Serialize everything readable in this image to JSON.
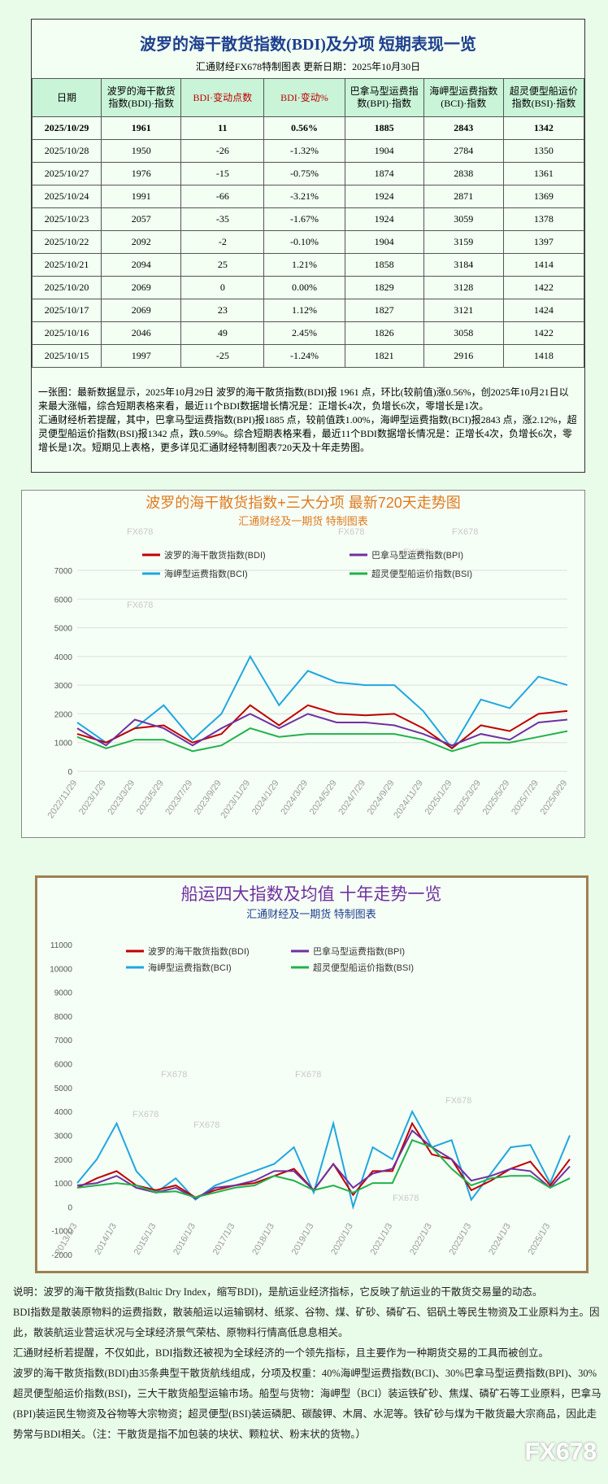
{
  "header": {
    "title": "波罗的海干散货指数(BDI)及分项  短期表现一览",
    "subtitle": "汇通财经FX678特制图表     更新日期：2025年10月30日"
  },
  "table": {
    "columns": [
      "日期",
      "波罗的海干散货指数(BDI)·指数",
      "BDI·变动点数",
      "BDI·变动%",
      "巴拿马型运费指数(BPI)·指数",
      "海岬型运费指数(BCI)·指数",
      "超灵便型船运价指数(BSI)·指数"
    ],
    "rows": [
      [
        "2025/10/29",
        "1961",
        "11",
        "0.56%",
        "1885",
        "2843",
        "1342"
      ],
      [
        "2025/10/28",
        "1950",
        "-26",
        "-1.32%",
        "1904",
        "2784",
        "1350"
      ],
      [
        "2025/10/27",
        "1976",
        "-15",
        "-0.75%",
        "1874",
        "2838",
        "1361"
      ],
      [
        "2025/10/24",
        "1991",
        "-66",
        "-3.21%",
        "1924",
        "2871",
        "1369"
      ],
      [
        "2025/10/23",
        "2057",
        "-35",
        "-1.67%",
        "1924",
        "3059",
        "1378"
      ],
      [
        "2025/10/22",
        "2092",
        "-2",
        "-0.10%",
        "1904",
        "3159",
        "1397"
      ],
      [
        "2025/10/21",
        "2094",
        "25",
        "1.21%",
        "1858",
        "3184",
        "1414"
      ],
      [
        "2025/10/20",
        "2069",
        "0",
        "0.00%",
        "1829",
        "3128",
        "1422"
      ],
      [
        "2025/10/17",
        "2069",
        "23",
        "1.12%",
        "1827",
        "3121",
        "1424"
      ],
      [
        "2025/10/16",
        "2046",
        "49",
        "2.45%",
        "1826",
        "3058",
        "1422"
      ],
      [
        "2025/10/15",
        "1997",
        "-25",
        "-1.24%",
        "1821",
        "2916",
        "1418"
      ]
    ]
  },
  "note": [
    "一张图：最新数据显示，2025年10月29日 波罗的海干散货指数(BDI)报 1961 点，环比(较前值)涨0.56%，创2025年10月21日以来最大涨幅，综合短期表格来看，最近11个BDI数据增长情况是：正增长4次，负增长6次，零增长是1次。",
    "汇通财经析若提醒，其中，巴拿马型运费指数(BPI)报1885 点，较前值跌1.00%，海岬型运费指数(BCI)报2843 点，涨2.12%，超灵便型船运价指数(BSI)报1342 点，跌0.59%。综合短期表格来看，最近11个BDI数据增长情况是：正增长4次，负增长6次，零增长是1次。短期见上表格，更多详见汇通财经特制图表720天及十年走势图。"
  ],
  "chart_data": [
    {
      "type": "line",
      "title": "波罗的海干散货指数+三大分项  最新720天走势图",
      "subtitle": "汇通财经及一期货  特制图表",
      "watermark": "FX678",
      "grid": true,
      "categories": [
        "2022/11/29",
        "2023/1/29",
        "2023/3/29",
        "2023/5/29",
        "2023/7/29",
        "2023/9/29",
        "2023/11/29",
        "2024/1/29",
        "2024/3/29",
        "2024/5/29",
        "2024/7/29",
        "2024/9/29",
        "2024/11/29",
        "2025/1/29",
        "2025/3/29",
        "2025/5/29",
        "2025/7/29",
        "2025/9/29"
      ],
      "ylim": [
        0,
        7000
      ],
      "yticks": [
        0,
        1000,
        2000,
        3000,
        4000,
        5000,
        6000,
        7000
      ],
      "series": [
        {
          "name": "海岬型运费指数(BCI)",
          "color": "#1fa7e0",
          "values": [
            1700,
            1000,
            1500,
            2300,
            1100,
            2000,
            4000,
            2300,
            3500,
            3100,
            3000,
            3000,
            2100,
            800,
            2500,
            2200,
            3300,
            3000
          ]
        },
        {
          "name": "波罗的海干散货指数(BDI)",
          "color": "#c00000",
          "values": [
            1300,
            1000,
            1500,
            1600,
            1000,
            1300,
            2300,
            1600,
            2300,
            2000,
            1950,
            2000,
            1500,
            800,
            1600,
            1400,
            2000,
            2100
          ]
        },
        {
          "name": "巴拿马型运费指数(BPI)",
          "color": "#7030a0",
          "values": [
            1500,
            900,
            1800,
            1500,
            900,
            1500,
            2000,
            1500,
            2000,
            1700,
            1700,
            1600,
            1300,
            900,
            1300,
            1100,
            1700,
            1800
          ]
        },
        {
          "name": "超灵便型船运价指数(BSI)",
          "color": "#22b14c",
          "values": [
            1200,
            800,
            1100,
            1100,
            700,
            900,
            1500,
            1200,
            1300,
            1300,
            1300,
            1300,
            1100,
            700,
            1000,
            1000,
            1200,
            1400
          ]
        }
      ]
    },
    {
      "type": "line",
      "title": "船运四大指数及均值 十年走势一览",
      "subtitle": "汇通财经及一期货 特制图表",
      "watermark": "FX678",
      "grid": false,
      "categories": [
        "2013/1/3",
        null,
        "2014/1/3",
        null,
        "2015/1/3",
        null,
        "2016/1/3",
        null,
        "2017/1/3",
        null,
        "2018/1/3",
        null,
        "2019/1/3",
        null,
        "2020/1/3",
        null,
        "2021/1/3",
        null,
        "2022/1/3",
        null,
        "2023/1/3",
        null,
        "2024/1/3",
        null,
        "2025/1/3",
        null
      ],
      "ylim": [
        -2000,
        11000
      ],
      "yticks": [
        -2000,
        -1000,
        0,
        1000,
        2000,
        3000,
        4000,
        5000,
        6000,
        7000,
        8000,
        9000,
        10000,
        11000
      ],
      "series": [
        {
          "name": "海岬型运费指数(BCI)",
          "color": "#1fa7e0",
          "values": [
            1000,
            2000,
            3500,
            1500,
            600,
            1200,
            300,
            900,
            1200,
            1500,
            1800,
            2500,
            600,
            3500,
            0,
            2500,
            2000,
            4000,
            2500,
            2800,
            300,
            1400,
            2500,
            2600,
            1000,
            3000
          ]
        },
        {
          "name": "波罗的海干散货指数(BDI)",
          "color": "#c00000",
          "values": [
            800,
            1200,
            1500,
            900,
            700,
            900,
            400,
            700,
            900,
            1000,
            1300,
            1600,
            700,
            1800,
            500,
            1500,
            1500,
            3500,
            2200,
            2000,
            700,
            1100,
            1600,
            1900,
            900,
            2000
          ]
        },
        {
          "name": "巴拿马型运费指数(BPI)",
          "color": "#7030a0",
          "values": [
            900,
            1000,
            1300,
            800,
            600,
            800,
            350,
            800,
            900,
            1100,
            1500,
            1500,
            700,
            1800,
            800,
            1400,
            1600,
            3200,
            2500,
            2000,
            1100,
            1300,
            1600,
            1500,
            800,
            1700
          ]
        },
        {
          "name": "超灵便型船运价指数(BSI)",
          "color": "#22b14c",
          "values": [
            800,
            900,
            1000,
            900,
            600,
            650,
            400,
            600,
            800,
            900,
            1300,
            1100,
            700,
            900,
            600,
            1000,
            1000,
            2800,
            2500,
            1600,
            900,
            1200,
            1300,
            1300,
            800,
            1200
          ]
        }
      ]
    }
  ],
  "footer": [
    "说明：波罗的海干散货指数(Baltic Dry Index，缩写BDI)，是航运业经济指标，它反映了航运业的干散货交易量的动态。",
    "BDI指数是散装原物料的运费指数，散装船运以运输钢材、纸浆、谷物、煤、矿砂、磷矿石、铝矾土等民生物资及工业原料为主。因此，散装航运业营运状况与全球经济景气荣枯、原物料行情高低息息相关。",
    "汇通财经析若提醒，不仅如此，BDI指数还被视为全球经济的一个领先指标，且主要作为一种期货交易的工具而被创立。",
    "波罗的海干散货指数(BDI)由35条典型干散货航线组成，分项及权重：40%海岬型运费指数(BCI)、30%巴拿马型运费指数(BPI)、30%超灵便型船运价指数(BSI)，三大干散货船型运输市场。船型与货物：海岬型（BCI）装运铁矿砂、焦煤、磷矿石等工业原料，巴拿马(BPI)装运民生物资及谷物等大宗物资；超灵便型(BSI)装运磷肥、碳酸钾、木屑、水泥等。铁矿砂与煤为干散货最大宗商品，因此走势常与BDI相关。（注：干散货是指不加包装的块状、颗粒状、粉末状的货物。）"
  ],
  "logo": "FX678"
}
